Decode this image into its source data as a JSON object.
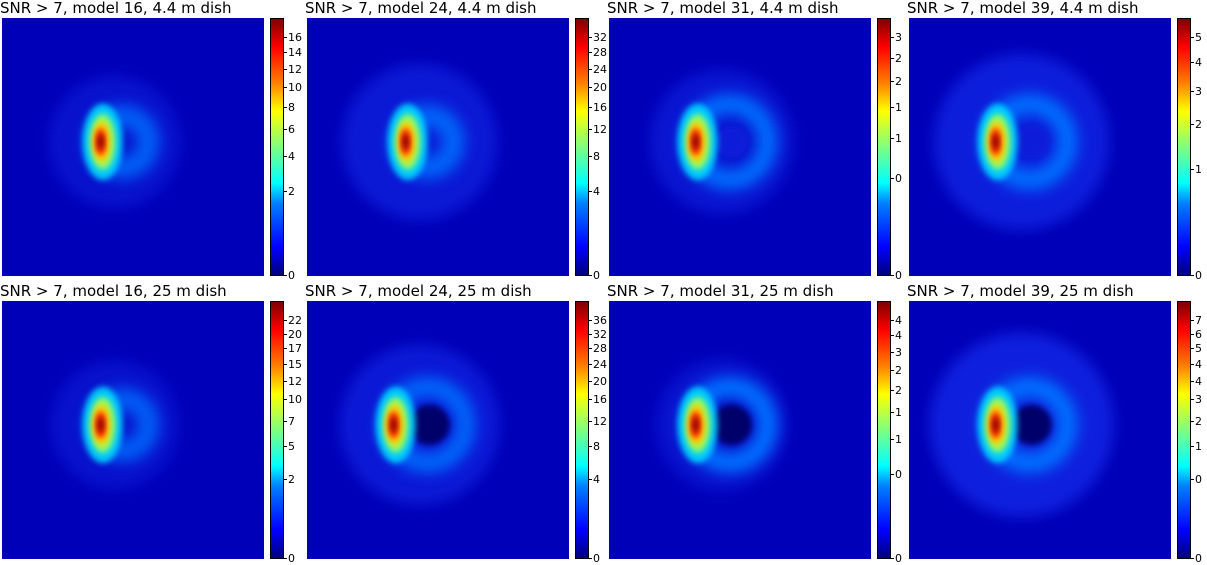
{
  "colors": {
    "background_low": "#00008f",
    "field": "#0000b8",
    "ring_glow": "#0070ff",
    "peak": "#7f0000"
  },
  "panels": [
    {
      "id": "p1",
      "title": "SNR > 7, model 16, 4.4 m dish",
      "ticks": [
        "0",
        "2",
        "4",
        "6",
        "8",
        "10",
        "12",
        "14",
        "16"
      ],
      "ring": "blob",
      "ring_intensity": 0.55,
      "halo": 0.15
    },
    {
      "id": "p2",
      "title": "SNR > 7, model 24, 4.4 m dish",
      "ticks": [
        "0",
        "4",
        "8",
        "12",
        "16",
        "20",
        "24",
        "28",
        "32"
      ],
      "ring": "blob",
      "ring_intensity": 0.65,
      "halo": 0.45
    },
    {
      "id": "p3",
      "title": "SNR > 7, model 31, 4.4 m dish",
      "ticks": [
        "0",
        "0",
        "1",
        "1",
        "2",
        "2",
        "3"
      ],
      "ring": "crescent",
      "ring_intensity": 0.9,
      "halo": 0.3
    },
    {
      "id": "p4",
      "title": "SNR > 7, model 39, 4.4 m dish",
      "ticks": [
        "0",
        "1",
        "2",
        "3",
        "4",
        "5"
      ],
      "ring": "crescent",
      "ring_intensity": 0.95,
      "halo": 0.7
    },
    {
      "id": "p5",
      "title": "SNR > 7, model 16, 25 m dish",
      "ticks": [
        "0",
        "2",
        "5",
        "7",
        "10",
        "12",
        "15",
        "17",
        "20",
        "22"
      ],
      "ring": "blob",
      "ring_intensity": 0.5,
      "halo": 0.1
    },
    {
      "id": "p6",
      "title": "SNR > 7, model 24, 25 m dish",
      "ticks": [
        "0",
        "4",
        "8",
        "12",
        "16",
        "20",
        "24",
        "28",
        "32",
        "36"
      ],
      "ring": "ring",
      "ring_intensity": 0.7,
      "halo": 0.5
    },
    {
      "id": "p7",
      "title": "SNR > 7, model 31, 25 m dish",
      "ticks": [
        "0",
        "0",
        "1",
        "1",
        "2",
        "2",
        "3",
        "4",
        "4"
      ],
      "ring": "ring",
      "ring_intensity": 1.0,
      "halo": 0.15
    },
    {
      "id": "p8",
      "title": "SNR > 7, model 39, 25 m dish",
      "ticks": [
        "0",
        "0",
        "1",
        "2",
        "3",
        "4",
        "4",
        "5",
        "6",
        "7"
      ],
      "ring": "ring",
      "ring_intensity": 1.0,
      "halo": 0.8
    }
  ]
}
